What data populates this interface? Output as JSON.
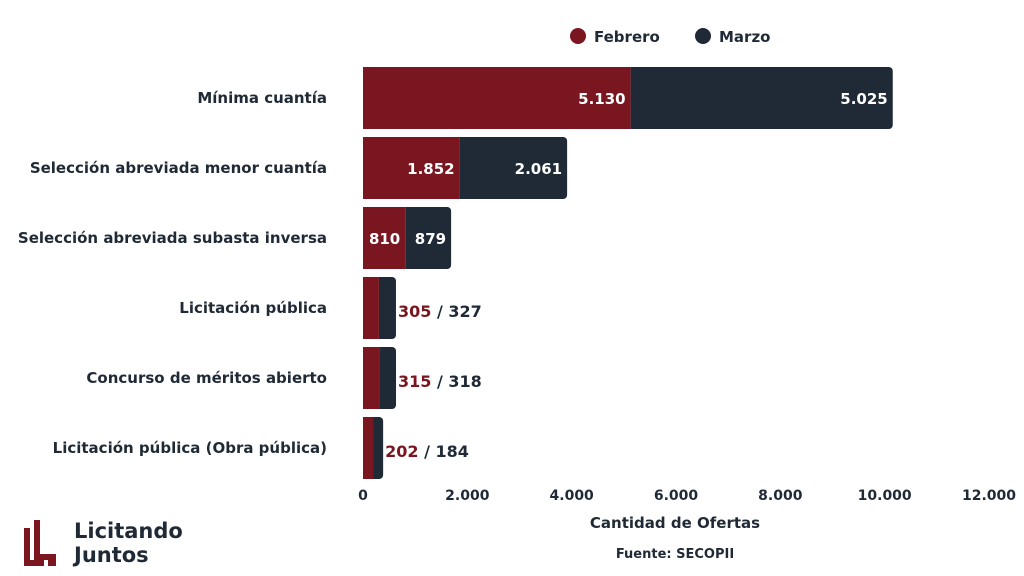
{
  "colors": {
    "feb": "#7a1620",
    "mar": "#1f2a36",
    "text": "#1f2a36"
  },
  "legend": {
    "feb": "Febrero",
    "mar": "Marzo"
  },
  "axis": {
    "title": "Cantidad de Ofertas"
  },
  "source": "Fuente: SECOPII",
  "brand": {
    "line1": "Licitando",
    "line2": "Juntos"
  },
  "chart_data": {
    "type": "bar",
    "orientation": "horizontal",
    "stacked": true,
    "categories": [
      "Mínima cuantía",
      "Selección abreviada menor cuantía",
      "Selección abreviada subasta inversa",
      "Licitación pública",
      "Concurso de méritos abierto",
      "Licitación pública (Obra pública)"
    ],
    "series": [
      {
        "name": "Febrero",
        "values": [
          5130,
          1852,
          810,
          305,
          315,
          202
        ]
      },
      {
        "name": "Marzo",
        "values": [
          5025,
          2061,
          879,
          327,
          318,
          184
        ]
      }
    ],
    "value_labels": {
      "Febrero": [
        "5.130",
        "1.852",
        "810",
        "305",
        "315",
        "202"
      ],
      "Marzo": [
        "5.025",
        "2.061",
        "879",
        "327",
        "318",
        "184"
      ],
      "separator": "/"
    },
    "xlim": [
      0,
      12000
    ],
    "xticks": [
      0,
      2000,
      4000,
      6000,
      8000,
      10000,
      12000
    ],
    "xtick_labels": [
      "0",
      "2.000",
      "4.000",
      "6.000",
      "8.000",
      "10.000",
      "12.000"
    ],
    "xlabel": "Cantidad de Ofertas",
    "ylabel": "",
    "legend_position": "top",
    "grid": false
  }
}
